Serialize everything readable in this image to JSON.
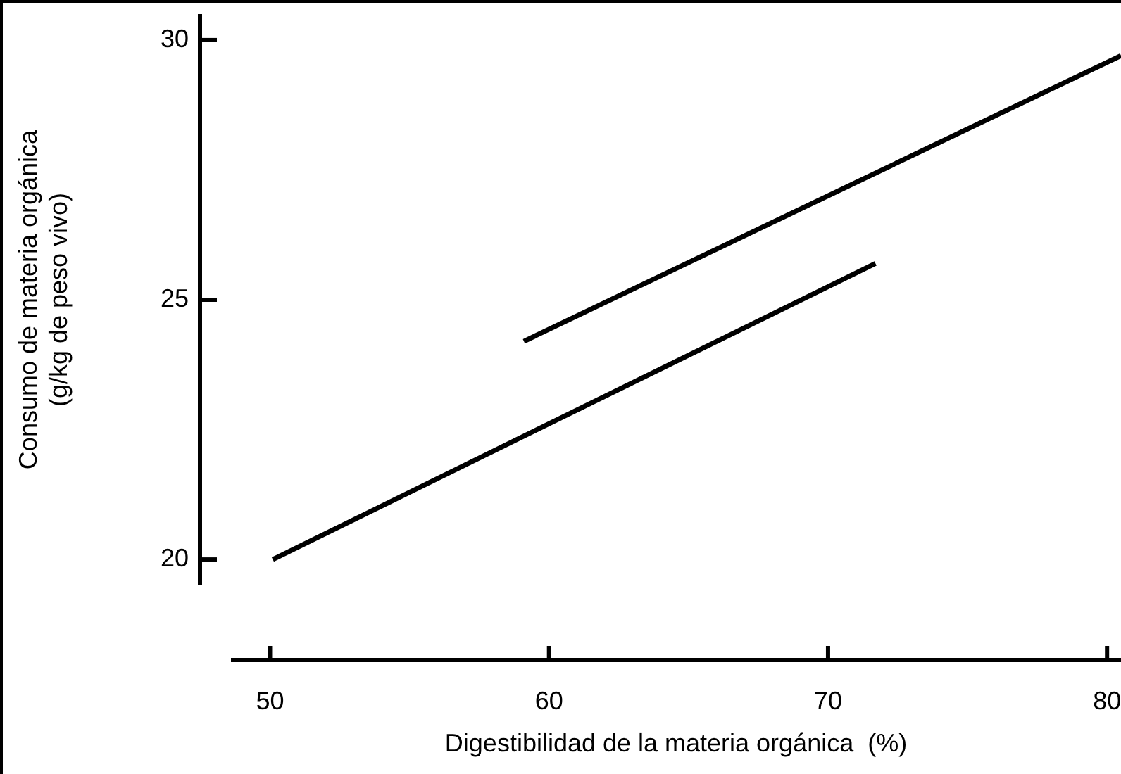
{
  "chart_data": {
    "type": "line",
    "xlabel": "Digestibilidad de la materia orgánica  (%)",
    "ylabel": "Consumo de materia orgánica\n(g/kg de peso vivo)",
    "series": [
      {
        "color": "#000000",
        "x": [
          50.1,
          71.7
        ],
        "values": [
          20.0,
          25.7
        ]
      },
      {
        "color": "#000000",
        "x": [
          59.1,
          80.5
        ],
        "values": [
          24.2,
          29.7
        ]
      }
    ],
    "xlim": [
      48.6,
      80.5
    ],
    "xticks": [
      50,
      60,
      70,
      80
    ],
    "ylim": [
      19.5,
      30.5
    ],
    "yticks": [
      20,
      25,
      30
    ],
    "grid": false,
    "legend": false,
    "marker": "none",
    "line_style": "solid"
  }
}
